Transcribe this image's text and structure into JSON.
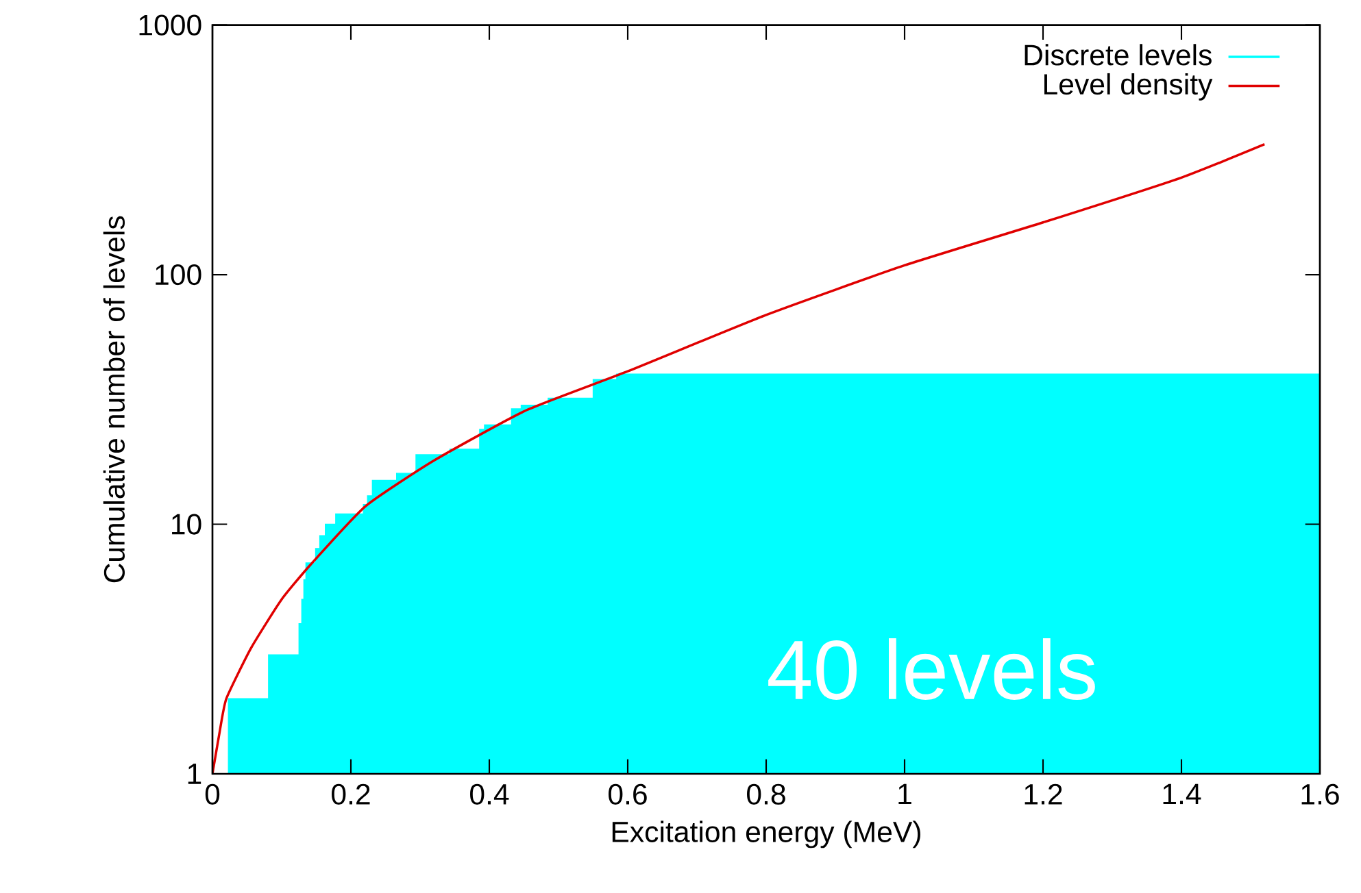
{
  "chart_data": {
    "type": "line",
    "xlabel": "Excitation energy (MeV)",
    "ylabel": "Cumulative number of levels",
    "log": "y",
    "xlim": [
      0,
      1.6
    ],
    "xticks": [
      0,
      0.2,
      0.4,
      0.6,
      0.8,
      1,
      1.2,
      1.4,
      1.6
    ],
    "ylim": [
      1,
      1000
    ],
    "yticks": [
      1,
      10,
      100,
      1000
    ],
    "legend": "top right",
    "series": [
      {
        "name": "Discrete levels",
        "type": "area",
        "color": "#00ffff",
        "x": [
          0,
          0.023,
          0.023,
          0.081,
          0.081,
          0.125,
          0.125,
          0.129,
          0.129,
          0.132,
          0.132,
          0.135,
          0.135,
          0.149,
          0.149,
          0.155,
          0.155,
          0.163,
          0.163,
          0.178,
          0.178,
          0.218,
          0.218,
          0.224,
          0.224,
          0.231,
          0.231,
          0.266,
          0.266,
          0.294,
          0.294,
          0.343,
          0.343,
          0.386,
          0.386,
          0.393,
          0.393,
          0.432,
          0.432,
          0.446,
          0.446,
          0.485,
          0.485,
          0.55,
          0.55,
          0.584,
          0.584,
          1.6
        ],
        "values": [
          1,
          1,
          2,
          2,
          3,
          3,
          4,
          4,
          5,
          5,
          6,
          6,
          7,
          7,
          8,
          8,
          9,
          9,
          10,
          10,
          11,
          11,
          12,
          12,
          13,
          13,
          15,
          15,
          16,
          16,
          19,
          19,
          20,
          20,
          24,
          24,
          25,
          25,
          29,
          29,
          30,
          30,
          32,
          32,
          38,
          38,
          40,
          40
        ]
      },
      {
        "name": "Level density",
        "color": "#e00000",
        "x": [
          0,
          0.01,
          0.02,
          0.056,
          0.1,
          0.142,
          0.221,
          0.32,
          0.452,
          0.6,
          0.8,
          1.0,
          1.2,
          1.4,
          1.52
        ],
        "values": [
          1,
          1.45,
          2,
          3.2,
          5,
          6.9,
          11.8,
          18,
          28.5,
          41,
          69,
          109,
          162,
          245,
          333
        ]
      }
    ],
    "annotations": [
      "40 levels"
    ]
  }
}
